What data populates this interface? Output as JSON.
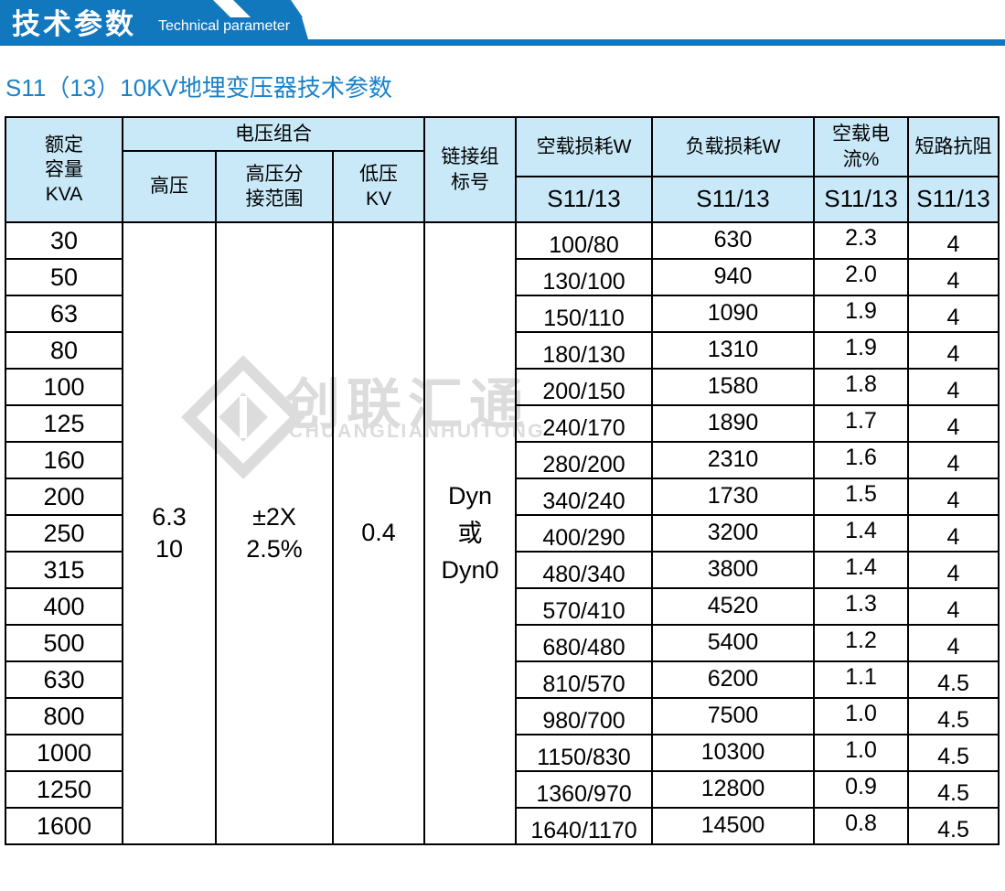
{
  "banner": {
    "title_cn": "技术参数",
    "title_en": "Technical parameter"
  },
  "page": {
    "title": "S11（13）10KV地埋变压器技术参数"
  },
  "watermark": {
    "cn": "创联汇通",
    "en": "CHUANGLIANHUITONG"
  },
  "colors": {
    "banner_blue": "#1278be",
    "title_blue": "#1b82c8",
    "header_bg": "#c9e9f8",
    "border": "#000000",
    "watermark_gray": "#dcdcdc"
  },
  "table": {
    "header": {
      "capacity": "额定\n容量\nKVA",
      "voltage_combo": "电压组合",
      "hv": "高压",
      "hv_tap": "高压分\n接范围",
      "lv": "低压\nKV",
      "vector_group": "链接组\n标号",
      "no_load_loss": "空载损耗W",
      "load_loss": "负载损耗W",
      "no_load_current": "空载电流%",
      "impedance": "短路抗阻",
      "model": "S11/13"
    },
    "merged": {
      "hv": "6.3\n10",
      "hv_tap": "±2X\n2.5%",
      "lv": "0.4",
      "vector_group": "Dyn\n或\nDyn0"
    },
    "rows": [
      {
        "capacity": "30",
        "no_load_loss": "100/80",
        "load_loss": "630",
        "no_load_current": "2.3",
        "impedance": "4"
      },
      {
        "capacity": "50",
        "no_load_loss": "130/100",
        "load_loss": "940",
        "no_load_current": "2.0",
        "impedance": "4"
      },
      {
        "capacity": "63",
        "no_load_loss": "150/110",
        "load_loss": "1090",
        "no_load_current": "1.9",
        "impedance": "4"
      },
      {
        "capacity": "80",
        "no_load_loss": "180/130",
        "load_loss": "1310",
        "no_load_current": "1.9",
        "impedance": "4"
      },
      {
        "capacity": "100",
        "no_load_loss": "200/150",
        "load_loss": "1580",
        "no_load_current": "1.8",
        "impedance": "4"
      },
      {
        "capacity": "125",
        "no_load_loss": "240/170",
        "load_loss": "1890",
        "no_load_current": "1.7",
        "impedance": "4"
      },
      {
        "capacity": "160",
        "no_load_loss": "280/200",
        "load_loss": "2310",
        "no_load_current": "1.6",
        "impedance": "4"
      },
      {
        "capacity": "200",
        "no_load_loss": "340/240",
        "load_loss": "1730",
        "no_load_current": "1.5",
        "impedance": "4"
      },
      {
        "capacity": "250",
        "no_load_loss": "400/290",
        "load_loss": "3200",
        "no_load_current": "1.4",
        "impedance": "4"
      },
      {
        "capacity": "315",
        "no_load_loss": "480/340",
        "load_loss": "3800",
        "no_load_current": "1.4",
        "impedance": "4"
      },
      {
        "capacity": "400",
        "no_load_loss": "570/410",
        "load_loss": "4520",
        "no_load_current": "1.3",
        "impedance": "4"
      },
      {
        "capacity": "500",
        "no_load_loss": "680/480",
        "load_loss": "5400",
        "no_load_current": "1.2",
        "impedance": "4"
      },
      {
        "capacity": "630",
        "no_load_loss": "810/570",
        "load_loss": "6200",
        "no_load_current": "1.1",
        "impedance": "4.5"
      },
      {
        "capacity": "800",
        "no_load_loss": "980/700",
        "load_loss": "7500",
        "no_load_current": "1.0",
        "impedance": "4.5"
      },
      {
        "capacity": "1000",
        "no_load_loss": "1150/830",
        "load_loss": "10300",
        "no_load_current": "1.0",
        "impedance": "4.5"
      },
      {
        "capacity": "1250",
        "no_load_loss": "1360/970",
        "load_loss": "12800",
        "no_load_current": "0.9",
        "impedance": "4.5"
      },
      {
        "capacity": "1600",
        "no_load_loss": "1640/1170",
        "load_loss": "14500",
        "no_load_current": "0.8",
        "impedance": "4.5"
      }
    ]
  }
}
